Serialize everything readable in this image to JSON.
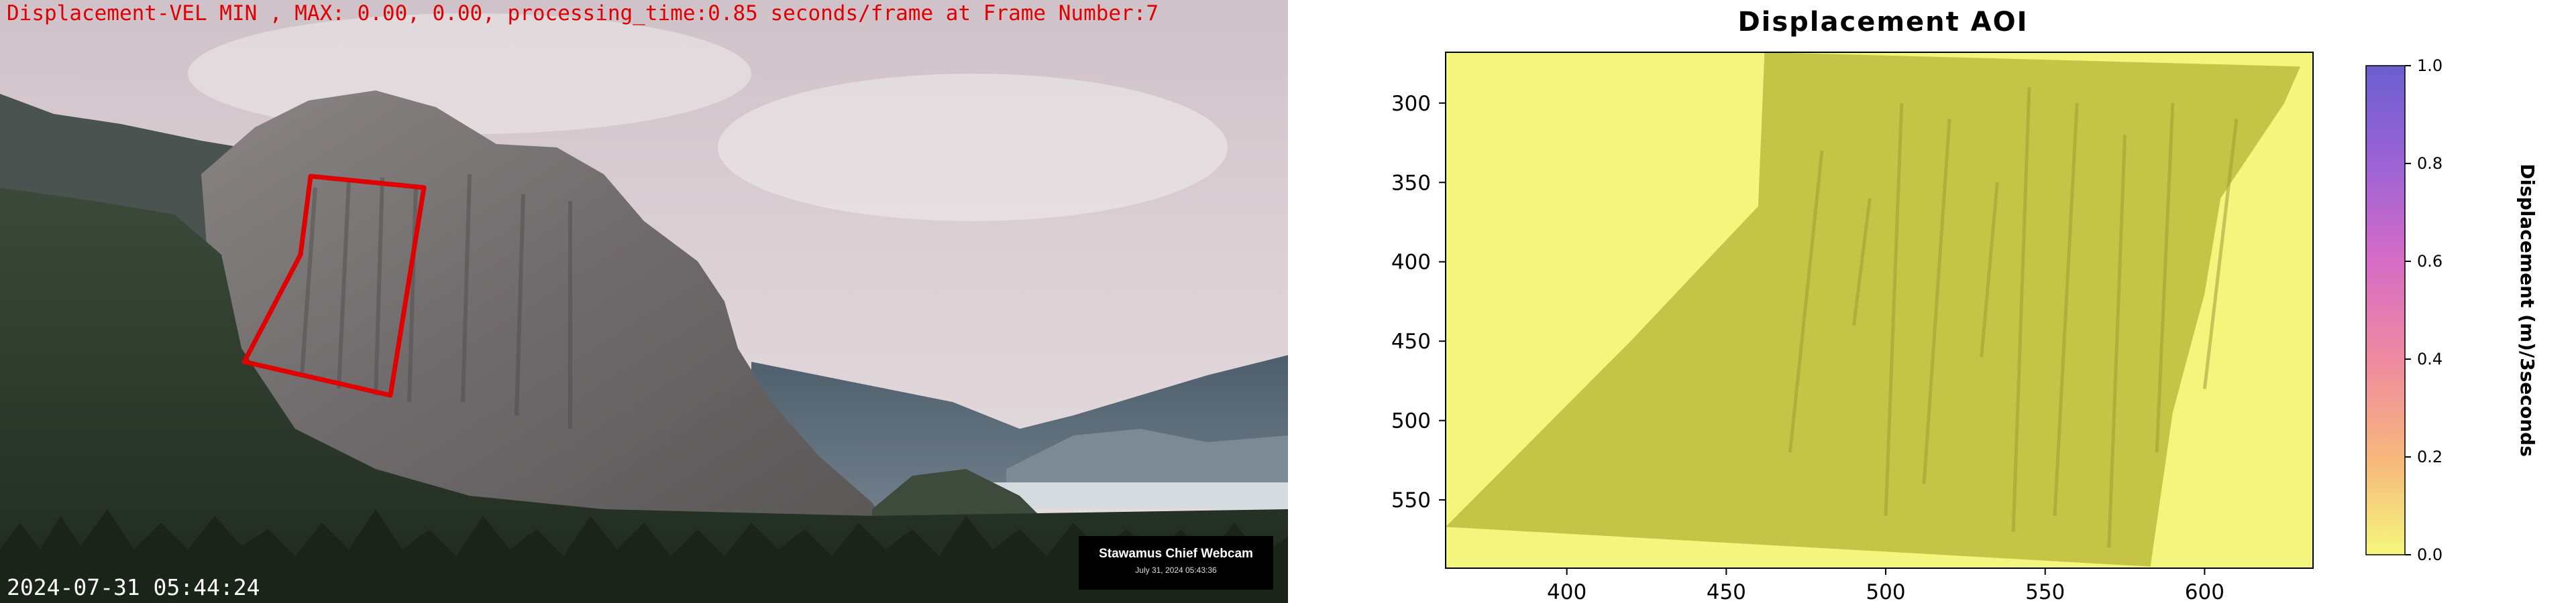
{
  "photo": {
    "overlay_text": "Displacement-VEL MIN , MAX: 0.00, 0.00, processing_time:0.85 seconds/frame at Frame Number:7",
    "timestamp": "2024-07-31 05:44:24",
    "webcam_title": "Stawamus Chief Webcam",
    "webcam_date": "July 31, 2024 05:43:36",
    "aoi_outline_color": "#e00000"
  },
  "chart_data": {
    "type": "heatmap",
    "title": "Displacement AOI",
    "xlabel": "",
    "ylabel": "",
    "xlim": [
      362,
      634
    ],
    "ylim": [
      593,
      268
    ],
    "x_ticks": [
      400,
      450,
      500,
      550,
      600
    ],
    "y_ticks": [
      300,
      350,
      400,
      450,
      500,
      550
    ],
    "colorbar": {
      "label": "Displacement (m)/3seconds",
      "range": [
        0.0,
        1.0
      ],
      "ticks": [
        0.0,
        0.2,
        0.4,
        0.6,
        0.8,
        1.0
      ],
      "colors": [
        "#f5f77d",
        "#f7b67c",
        "#ef8aa0",
        "#d66cc6",
        "#9c63d6",
        "#6a5fcf"
      ]
    },
    "displacement_min": 0.0,
    "displacement_max": 0.0,
    "background_color": "#f3f57c",
    "region_color": "#c4c447"
  }
}
